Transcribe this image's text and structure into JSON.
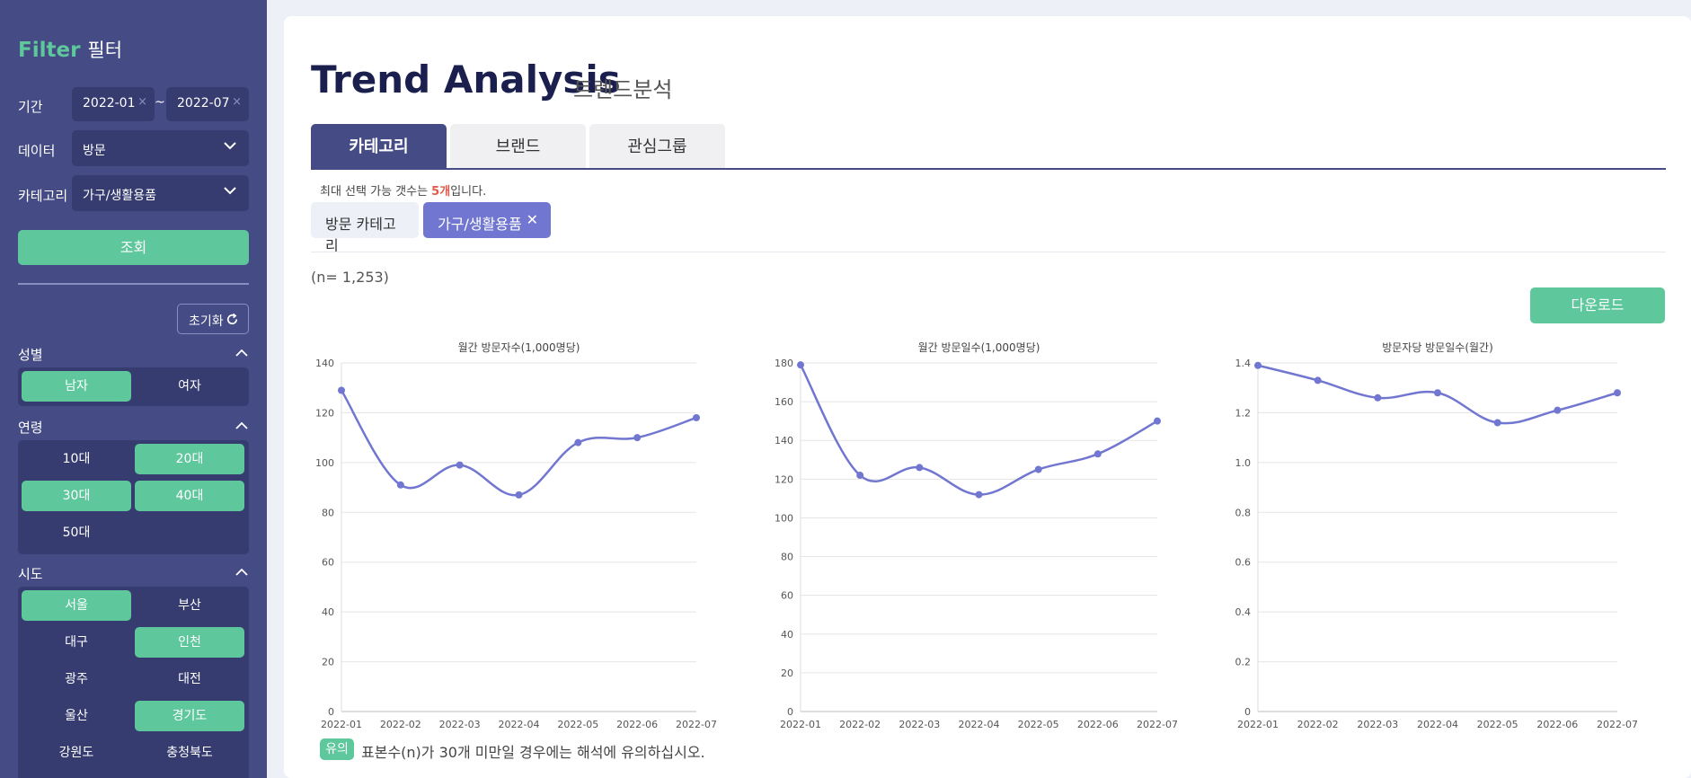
{
  "sidebar": {
    "title_en": "Filter",
    "title_ko": "필터",
    "period_label": "기간",
    "date_from": "2022-01",
    "date_to": "2022-07",
    "clear_glyph": "×",
    "tilde": "~",
    "data_label": "데이터",
    "data_value": "방문",
    "category_label": "카테고리",
    "category_value": "가구/생활용품",
    "search_label": "조회",
    "reset_label": "초기화",
    "gender": {
      "label": "성별",
      "options": [
        "남자",
        "여자"
      ],
      "selected": [
        "남자"
      ]
    },
    "age": {
      "label": "연령",
      "options": [
        "10대",
        "20대",
        "30대",
        "40대",
        "50대"
      ],
      "selected": [
        "20대",
        "30대",
        "40대"
      ]
    },
    "region": {
      "label": "시도",
      "options": [
        "서울",
        "부산",
        "대구",
        "인천",
        "광주",
        "대전",
        "울산",
        "경기도",
        "강원도",
        "충청북도"
      ],
      "selected": [
        "서울",
        "인천",
        "경기도"
      ]
    }
  },
  "main": {
    "title": "Trend Analysis",
    "subtitle": "트렌드분석",
    "tabs": [
      "카테고리",
      "브랜드",
      "관심그룹"
    ],
    "active_tab": 0,
    "max_note_pre": "최대 선택 가능 갯수는 ",
    "max_note_hl": "5개",
    "max_note_post": "입니다.",
    "selected_chips": [
      "방문 카테고리",
      "가구/생활용품"
    ],
    "remove_glyph": "✕",
    "n_count": "(n= 1,253)",
    "download_label": "다운로드",
    "warn_badge": "유의",
    "warn_text": "표본수(n)가 30개 미만일 경우에는 해석에 유의하십시오."
  },
  "colors": {
    "sidebar_bg": "#454b84",
    "panel_bg": "#363c70",
    "accent_green": "#5ec79c",
    "line": "#7177d0",
    "highlight_red": "#e35a4a"
  },
  "chart_data": [
    {
      "type": "line",
      "title": "월간 방문자수(1,000명당)",
      "x": [
        "2022-01",
        "2022-02",
        "2022-03",
        "2022-04",
        "2022-05",
        "2022-06",
        "2022-07"
      ],
      "values": [
        129,
        91,
        99,
        87,
        108,
        110,
        118
      ],
      "ylim": [
        0,
        140
      ],
      "yticks": [
        "0",
        "20",
        "40",
        "60",
        "80",
        "100",
        "120",
        "140"
      ],
      "grid": true
    },
    {
      "type": "line",
      "title": "월간 방문일수(1,000명당)",
      "x": [
        "2022-01",
        "2022-02",
        "2022-03",
        "2022-04",
        "2022-05",
        "2022-06",
        "2022-07"
      ],
      "values": [
        179,
        122,
        126,
        112,
        125,
        133,
        150
      ],
      "ylim": [
        0,
        180
      ],
      "yticks": [
        "0",
        "20",
        "40",
        "60",
        "80",
        "100",
        "120",
        "140",
        "160",
        "180"
      ],
      "grid": true
    },
    {
      "type": "line",
      "title": "방문자당 방문일수(월간)",
      "x": [
        "2022-01",
        "2022-02",
        "2022-03",
        "2022-04",
        "2022-05",
        "2022-06",
        "2022-07"
      ],
      "values": [
        1.39,
        1.33,
        1.26,
        1.28,
        1.16,
        1.21,
        1.28
      ],
      "ylim": [
        0,
        1.4
      ],
      "yticks": [
        "0",
        "0.2",
        "0.4",
        "0.6",
        "0.8",
        "1.0",
        "1.2",
        "1.4"
      ],
      "grid": true
    }
  ]
}
